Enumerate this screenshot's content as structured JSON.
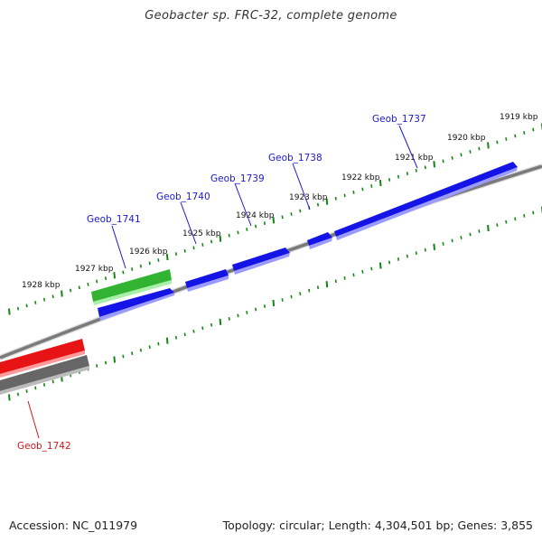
{
  "title": "Geobacter sp. FRC-32, complete genome",
  "footer": {
    "accession": "Accession: NC_011979",
    "summary": "Topology: circular; Length: 4,304,501 bp; Genes: 3,855"
  },
  "colors": {
    "forward_gene": "#1414e6",
    "reverse_gene": "#e61414",
    "rna_gene": "#32b432",
    "backbone": "#7a7a7a",
    "tick": "#118811",
    "label_forward": "#1a1acc",
    "label_reverse": "#cc1a1a"
  },
  "ticks": [
    {
      "label": "1928 kbp",
      "kbp": 1928
    },
    {
      "label": "1927 kbp",
      "kbp": 1927
    },
    {
      "label": "1926 kbp",
      "kbp": 1926
    },
    {
      "label": "1925 kbp",
      "kbp": 1925
    },
    {
      "label": "1924 kbp",
      "kbp": 1924
    },
    {
      "label": "1923 kbp",
      "kbp": 1923
    },
    {
      "label": "1922 kbp",
      "kbp": 1922
    },
    {
      "label": "1921 kbp",
      "kbp": 1921
    },
    {
      "label": "1920 kbp",
      "kbp": 1920
    },
    {
      "label": "1919 kbp",
      "kbp": 1919
    }
  ],
  "gene_labels": [
    {
      "text": "Geob_1737",
      "strand": "forward"
    },
    {
      "text": "Geob_1738",
      "strand": "forward"
    },
    {
      "text": "Geob_1739",
      "strand": "forward"
    },
    {
      "text": "Geob_1740",
      "strand": "forward"
    },
    {
      "text": "Geob_1741",
      "strand": "forward"
    },
    {
      "text": "Geob_1742",
      "strand": "reverse"
    }
  ]
}
